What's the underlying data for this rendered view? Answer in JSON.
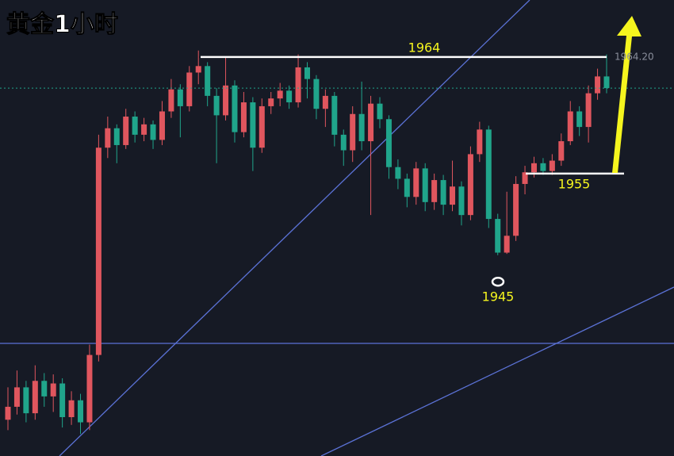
{
  "chart_data": {
    "type": "candlestick",
    "title": "黄金1小时",
    "up_color": "#e0565e",
    "down_color": "#20a58b",
    "ylim": [
      1933.2,
      1968.4
    ],
    "open": [
      1936,
      1937,
      1938.5,
      1936.5,
      1939,
      1937.8,
      1938.8,
      1936.2,
      1937.5,
      1935.8,
      1941,
      1957,
      1958.5,
      1957.2,
      1959.4,
      1958,
      1958.8,
      1957.6,
      1959.8,
      1961.5,
      1960.2,
      1962.8,
      1963.3,
      1961,
      1959.5,
      1961.8,
      1958.2,
      1960.5,
      1957,
      1960.2,
      1960.8,
      1961.4,
      1960.5,
      1963.2,
      1962.3,
      1960,
      1961,
      1958,
      1956.8,
      1959.6,
      1957.5,
      1960.4,
      1959.2,
      1955.5,
      1954.6,
      1953.2,
      1955.4,
      1952.8,
      1954.5,
      1952.6,
      1954,
      1951.8,
      1956.5,
      1958.4,
      1951.5,
      1948.9,
      1950.2,
      1954.2,
      1955.1,
      1955.8,
      1955.2,
      1956,
      1957.5,
      1959.8,
      1958.6,
      1961.2,
      1962.5
    ],
    "high": [
      1938.5,
      1939.8,
      1939,
      1940.2,
      1939.6,
      1939.5,
      1939.2,
      1938.2,
      1938,
      1941.8,
      1958,
      1959.4,
      1958.8,
      1960,
      1959.8,
      1959.3,
      1959.1,
      1960.6,
      1962.3,
      1961.9,
      1963.3,
      1964.5,
      1963.6,
      1961.6,
      1964,
      1962.2,
      1961.3,
      1960.9,
      1960.8,
      1961.3,
      1962,
      1961.8,
      1964.2,
      1963.6,
      1962.6,
      1961.5,
      1961.3,
      1958.4,
      1960.2,
      1962.1,
      1961,
      1960.9,
      1959.5,
      1956.1,
      1955,
      1955.9,
      1955.8,
      1955,
      1954.9,
      1956,
      1954.4,
      1957.1,
      1959,
      1958.7,
      1951.9,
      1953.6,
      1954.8,
      1955.6,
      1956.3,
      1956.2,
      1956.5,
      1958.1,
      1960.6,
      1960.2,
      1961.8,
      1963.1,
      1964.2
    ],
    "low": [
      1935.2,
      1936.4,
      1935.8,
      1936,
      1937,
      1936.6,
      1935.4,
      1935.6,
      1934.9,
      1935.2,
      1940.5,
      1956.2,
      1955.8,
      1956.9,
      1957.4,
      1957.5,
      1956.9,
      1957.2,
      1959.3,
      1957.8,
      1959.8,
      1961.9,
      1960.2,
      1955.8,
      1959.1,
      1957.4,
      1957.8,
      1955.2,
      1956.6,
      1959.6,
      1960.2,
      1960,
      1960.1,
      1960.8,
      1959.2,
      1958.6,
      1957.1,
      1955.6,
      1955.9,
      1956.8,
      1951.8,
      1958.5,
      1954.6,
      1953.8,
      1952.4,
      1952.6,
      1952.1,
      1952.2,
      1951.8,
      1952.1,
      1951,
      1951.4,
      1955.9,
      1950.8,
      1948.7,
      1948.8,
      1949.8,
      1953.4,
      1954.7,
      1954.9,
      1954.9,
      1955.6,
      1957.2,
      1957.9,
      1957.4,
      1960.7,
      1961.2
    ],
    "close": [
      1937,
      1938.5,
      1936.5,
      1939,
      1937.8,
      1938.8,
      1936.2,
      1937.5,
      1935.8,
      1941,
      1957,
      1958.5,
      1957.2,
      1959.4,
      1958,
      1958.8,
      1957.6,
      1959.8,
      1961.5,
      1960.2,
      1962.8,
      1963.3,
      1961,
      1959.5,
      1961.8,
      1958.2,
      1960.5,
      1957,
      1960.2,
      1960.8,
      1961.4,
      1960.5,
      1963.2,
      1962.3,
      1960,
      1961,
      1958,
      1956.8,
      1959.6,
      1957.5,
      1960.4,
      1959.2,
      1955.5,
      1954.6,
      1953.2,
      1955.4,
      1952.8,
      1954.5,
      1952.6,
      1954,
      1951.8,
      1956.5,
      1958.4,
      1951.5,
      1948.9,
      1950.2,
      1954.2,
      1955.1,
      1955.8,
      1955.2,
      1956,
      1957.5,
      1959.8,
      1958.6,
      1961.2,
      1962.5,
      1961.6
    ],
    "levels": [
      1964,
      1955
    ],
    "low_marker": 1945,
    "price_label": "1964.20"
  }
}
